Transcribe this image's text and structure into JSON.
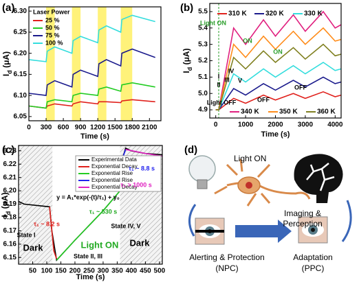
{
  "chart_data": [
    {
      "type": "line",
      "panel_label": "(a)",
      "xlabel": "Time (s)",
      "ylabel": [
        "I",
        "d",
        " (μA)"
      ],
      "xlim": [
        0,
        2300
      ],
      "ylim": [
        6.04,
        6.31
      ],
      "xticks": [
        0,
        300,
        600,
        900,
        1200,
        1500,
        1800,
        2100
      ],
      "yticks": [
        6.05,
        {
          "value": 6.1,
          "label": "6.10"
        },
        6.15,
        {
          "value": 6.2,
          "label": "6.20"
        },
        6.25,
        {
          "value": 6.3,
          "label": "6.30"
        }
      ],
      "highlight_ranges": [
        [
          300,
          450
        ],
        [
          750,
          900
        ],
        [
          1200,
          1350
        ],
        [
          1600,
          1800
        ]
      ],
      "highlight_color": "#fff27a",
      "legend_title": "Laser Power",
      "x": [
        0,
        300,
        320,
        450,
        750,
        770,
        900,
        1200,
        1220,
        1350,
        1600,
        1620,
        1800,
        2200
      ],
      "series": [
        {
          "name": "25 %",
          "color": "#e0201b",
          "values": [
            6.075,
            6.07,
            6.075,
            6.08,
            6.075,
            6.08,
            6.085,
            6.08,
            6.085,
            6.085,
            6.083,
            6.087,
            6.09,
            6.085
          ]
        },
        {
          "name": "50 %",
          "color": "#22cc22",
          "values": [
            6.075,
            6.07,
            6.085,
            6.09,
            6.085,
            6.1,
            6.105,
            6.1,
            6.115,
            6.12,
            6.11,
            6.125,
            6.13,
            6.12
          ]
        },
        {
          "name": "75 %",
          "color": "#1a1a8c",
          "values": [
            6.105,
            6.1,
            6.125,
            6.135,
            6.12,
            6.15,
            6.16,
            6.145,
            6.175,
            6.185,
            6.17,
            6.2,
            6.21,
            6.19
          ]
        },
        {
          "name": "100 %",
          "color": "#33dddd",
          "values": [
            6.185,
            6.18,
            6.205,
            6.215,
            6.2,
            6.23,
            6.24,
            6.225,
            6.255,
            6.265,
            6.25,
            6.28,
            6.29,
            6.275
          ]
        }
      ]
    },
    {
      "type": "line",
      "panel_label": "(b)",
      "xlabel": "Time (s)",
      "ylabel": [
        "I",
        "d",
        " (μA)"
      ],
      "xlim": [
        -200,
        4200
      ],
      "ylim": [
        4.85,
        5.55
      ],
      "xticks": [
        0,
        1000,
        2000,
        3000,
        4000
      ],
      "yticks": [
        4.9,
        {
          "value": 5,
          "label": "5.0"
        },
        5.1,
        5.2,
        5.3,
        5.4,
        5.5
      ],
      "marker_x": 100,
      "marker_color": "#2a9d2a",
      "x": [
        0,
        100,
        600,
        1000,
        1600,
        2000,
        2600,
        3000,
        3600,
        4000,
        4200
      ],
      "series": [
        {
          "name": "310 K",
          "color": "#e0201b",
          "values": [
            4.9,
            4.9,
            4.97,
            4.94,
            4.99,
            4.96,
            5.0,
            4.97,
            5.01,
            4.98,
            4.99
          ]
        },
        {
          "name": "320 K",
          "color": "#1a1a8c",
          "values": [
            4.9,
            4.9,
            5.03,
            4.99,
            5.06,
            5.02,
            5.08,
            5.04,
            5.1,
            5.06,
            5.07
          ]
        },
        {
          "name": "330 K",
          "color": "#33dddd",
          "values": [
            4.9,
            4.9,
            5.12,
            5.07,
            5.15,
            5.1,
            5.17,
            5.12,
            5.19,
            5.14,
            5.15
          ]
        },
        {
          "name": "340 K",
          "color": "#e0207f",
          "values": [
            4.9,
            4.9,
            5.4,
            5.3,
            5.45,
            5.35,
            5.48,
            5.38,
            5.5,
            5.4,
            5.42
          ]
        },
        {
          "name": "350 K",
          "color": "#ff8c1a",
          "values": [
            4.9,
            4.9,
            5.3,
            5.22,
            5.35,
            5.27,
            5.38,
            5.3,
            5.4,
            5.32,
            5.33
          ]
        },
        {
          "name": "360 K",
          "color": "#808020",
          "values": [
            4.9,
            4.9,
            5.22,
            5.15,
            5.26,
            5.19,
            5.28,
            5.21,
            5.3,
            5.23,
            5.24
          ]
        }
      ],
      "annotations": [
        {
          "text": "Light ON",
          "color": "#2a9d2a"
        },
        {
          "text": "ON",
          "color": "#2a9d2a"
        },
        {
          "text": "ON",
          "color": "#2a9d2a"
        },
        {
          "text": "OFF",
          "color": "#000000"
        },
        {
          "text": "OFF",
          "color": "#000000"
        },
        {
          "text": "Light OFF",
          "color": "#000000"
        },
        {
          "text": "I",
          "color": "#000000"
        },
        {
          "text": "II",
          "color": "#000000"
        },
        {
          "text": "III",
          "color": "#000000"
        },
        {
          "text": "IV",
          "color": "#000000"
        },
        {
          "text": "V",
          "color": "#000000"
        }
      ]
    },
    {
      "type": "line",
      "panel_label": "(c)",
      "xlabel": "Time (s)",
      "ylabel": [
        "I",
        "d",
        " (μA)"
      ],
      "xlim": [
        0,
        510
      ],
      "ylim": [
        6.145,
        6.234
      ],
      "xticks": [
        50,
        100,
        150,
        200,
        250,
        300,
        350,
        400,
        450,
        500
      ],
      "yticks": [
        6.15,
        6.16,
        6.17,
        6.18,
        6.19,
        {
          "value": 6.2,
          "label": "6.20"
        },
        6.21,
        6.22,
        6.23
      ],
      "hatched_ranges": [
        [
          0,
          120
        ],
        [
          360,
          510
        ]
      ],
      "series": [
        {
          "name": "Experimental Data",
          "color": "#000000",
          "x": [
            0,
            20,
            110,
            118,
            135,
            200,
            300,
            360,
            370,
            380,
            400,
            450,
            510
          ],
          "values": [
            6.192,
            6.19,
            6.188,
            6.17,
            6.148,
            6.163,
            6.185,
            6.2,
            6.225,
            6.232,
            6.23,
            6.228,
            6.227
          ]
        },
        {
          "name": "Exponential Decay",
          "color": "#e0201b",
          "x": [
            110,
            118,
            125,
            135
          ],
          "values": [
            6.188,
            6.17,
            6.155,
            6.149
          ]
        },
        {
          "name": "Exponential Rise",
          "color": "#22cc22",
          "x": [
            135,
            200,
            300,
            360
          ],
          "values": [
            6.148,
            6.163,
            6.185,
            6.2
          ]
        },
        {
          "name": "Exponential Rise",
          "color": "#2222ee",
          "x": [
            360,
            365,
            370,
            380
          ],
          "values": [
            6.2,
            6.215,
            6.225,
            6.231
          ]
        },
        {
          "name": "Exponential Decay",
          "color": "#e020c0",
          "x": [
            380,
            450,
            510
          ],
          "values": [
            6.231,
            6.228,
            6.226
          ]
        }
      ],
      "annotations": [
        {
          "text": "y = A₁*exp(-(t)/τ₁) + y₀",
          "color": "#000000"
        },
        {
          "text": "τ₁ ~ 8.2 s",
          "color": "#e0201b"
        },
        {
          "text": "τ₁ ~ 530 s",
          "color": "#22aa22"
        },
        {
          "text": "τ₁ ~ 8.8 s",
          "color": "#2222ee"
        },
        {
          "text": "τ₁ > 1000 s",
          "color": "#e020c0"
        },
        {
          "text": "State I",
          "color": "#000000"
        },
        {
          "text": "State II, III",
          "color": "#000000"
        },
        {
          "text": "State IV, V",
          "color": "#000000"
        },
        {
          "text": "Dark",
          "color": "#000000"
        },
        {
          "text": "Light ON",
          "color": "#22aa22"
        },
        {
          "text": "Dark",
          "color": "#000000"
        }
      ]
    }
  ],
  "diagram": {
    "panel_label": "(d)",
    "light_label": "Light ON",
    "center_label": [
      "Imaging &",
      "Perception"
    ],
    "left_label": [
      "Alerting & Protection",
      "(NPC)"
    ],
    "right_label": [
      "Adaptation",
      "(PPC)"
    ]
  }
}
